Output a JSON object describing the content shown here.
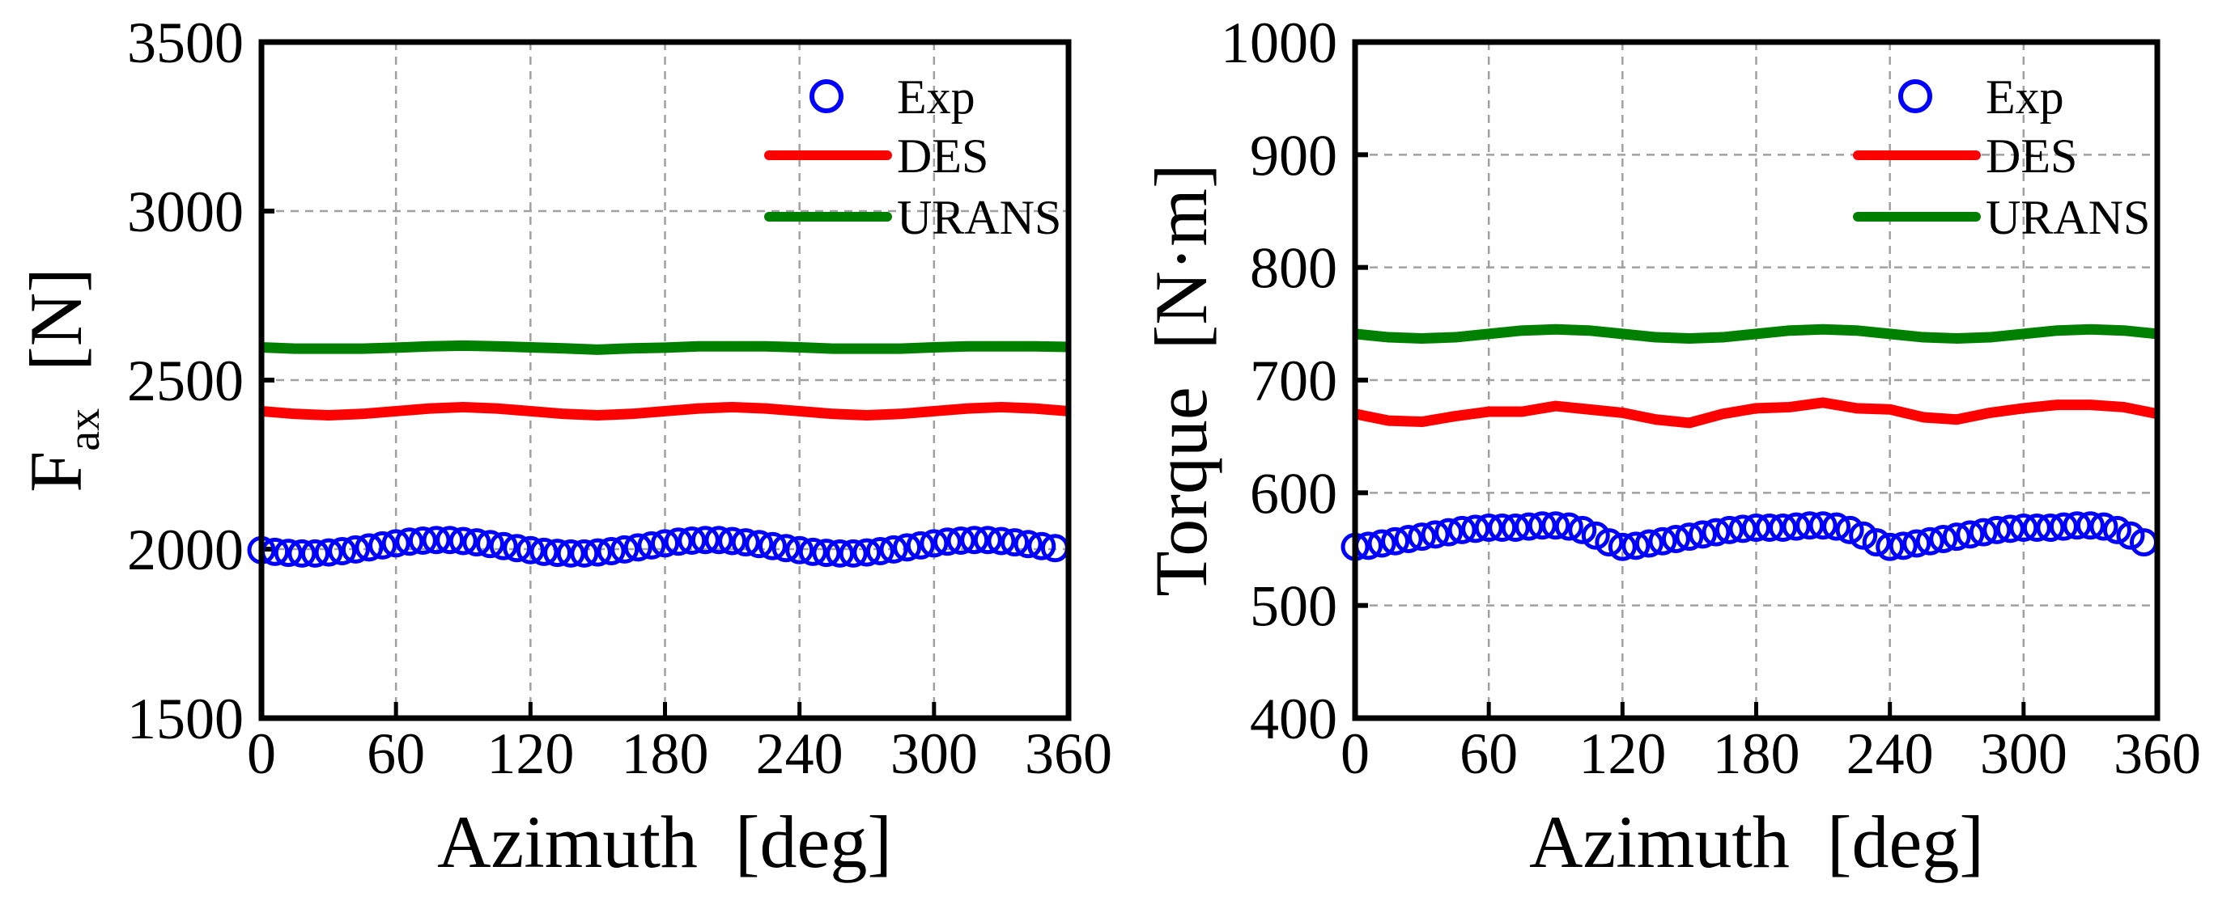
{
  "chart_data": [
    {
      "type": "line",
      "xlabel": "Azimuth  [deg]",
      "ylabel": "F",
      "ylabel_sub": "ax",
      "ylabel_unit": "[N]",
      "xlim": [
        0,
        360
      ],
      "ylim": [
        1500,
        3500
      ],
      "xticks": [
        0,
        60,
        120,
        180,
        240,
        300,
        360
      ],
      "yticks": [
        1500,
        2000,
        2500,
        3000,
        3500
      ],
      "grid": true,
      "legend_position": "top-right",
      "legend": [
        "Exp",
        "DES",
        "URANS"
      ],
      "series": [
        {
          "name": "Exp",
          "style": "markers",
          "color": "#0000ff",
          "x": [
            0,
            6,
            12,
            18,
            24,
            30,
            36,
            42,
            48,
            54,
            60,
            66,
            72,
            78,
            84,
            90,
            96,
            102,
            108,
            114,
            120,
            126,
            132,
            138,
            144,
            150,
            156,
            162,
            168,
            174,
            180,
            186,
            192,
            198,
            204,
            210,
            216,
            222,
            228,
            234,
            240,
            246,
            252,
            258,
            264,
            270,
            276,
            282,
            288,
            294,
            300,
            306,
            312,
            318,
            324,
            330,
            336,
            342,
            348,
            354
          ],
          "y": [
            1997,
            1992,
            1989,
            1987,
            1987,
            1990,
            1994,
            1999,
            2005,
            2011,
            2017,
            2022,
            2025,
            2027,
            2027,
            2024,
            2020,
            2015,
            2009,
            2003,
            1997,
            1992,
            1989,
            1987,
            1987,
            1990,
            1994,
            1999,
            2005,
            2011,
            2017,
            2022,
            2025,
            2027,
            2027,
            2024,
            2020,
            2015,
            2009,
            2003,
            1997,
            1992,
            1989,
            1987,
            1987,
            1990,
            1994,
            1999,
            2005,
            2011,
            2017,
            2022,
            2025,
            2027,
            2027,
            2024,
            2020,
            2015,
            2009,
            2003
          ]
        },
        {
          "name": "DES",
          "style": "line",
          "color": "#ff0000",
          "x": [
            0,
            15,
            30,
            45,
            60,
            75,
            90,
            105,
            120,
            135,
            150,
            165,
            180,
            195,
            210,
            225,
            240,
            255,
            270,
            285,
            300,
            315,
            330,
            345,
            360
          ],
          "y": [
            2408,
            2400,
            2396,
            2400,
            2408,
            2416,
            2420,
            2416,
            2408,
            2400,
            2396,
            2400,
            2408,
            2416,
            2420,
            2416,
            2408,
            2400,
            2396,
            2400,
            2408,
            2416,
            2420,
            2416,
            2408
          ]
        },
        {
          "name": "URANS",
          "style": "line",
          "color": "#008000",
          "x": [
            0,
            15,
            30,
            45,
            60,
            75,
            90,
            105,
            120,
            135,
            150,
            165,
            180,
            195,
            210,
            225,
            240,
            255,
            270,
            285,
            300,
            315,
            330,
            345,
            360
          ],
          "y": [
            2597,
            2593,
            2593,
            2593,
            2596,
            2600,
            2602,
            2600,
            2597,
            2594,
            2590,
            2594,
            2596,
            2600,
            2600,
            2600,
            2597,
            2593,
            2593,
            2593,
            2597,
            2600,
            2600,
            2600,
            2598
          ]
        }
      ]
    },
    {
      "type": "line",
      "xlabel": "Azimuth  [deg]",
      "ylabel": "Torque  [N·m]",
      "ylabel_sub": "",
      "ylabel_unit": "",
      "xlim": [
        0,
        360
      ],
      "ylim": [
        400,
        1000
      ],
      "xticks": [
        0,
        60,
        120,
        180,
        240,
        300,
        360
      ],
      "yticks": [
        400,
        500,
        600,
        700,
        800,
        900,
        1000
      ],
      "grid": true,
      "legend_position": "top-right",
      "legend": [
        "Exp",
        "DES",
        "URANS"
      ],
      "series": [
        {
          "name": "Exp",
          "style": "markers",
          "color": "#0000ff",
          "x": [
            0,
            6,
            12,
            18,
            24,
            30,
            36,
            42,
            48,
            54,
            60,
            66,
            72,
            78,
            84,
            90,
            96,
            102,
            108,
            114,
            120,
            126,
            132,
            138,
            144,
            150,
            156,
            162,
            168,
            174,
            180,
            186,
            192,
            198,
            204,
            210,
            216,
            222,
            228,
            234,
            240,
            246,
            252,
            258,
            264,
            270,
            276,
            282,
            288,
            294,
            300,
            306,
            312,
            318,
            324,
            330,
            336,
            342,
            348,
            354
          ],
          "y": [
            552,
            553,
            555,
            557,
            559,
            561,
            563,
            565,
            567,
            568,
            569,
            569,
            569,
            570,
            571,
            571,
            570,
            567,
            562,
            556,
            552,
            553,
            555,
            557,
            559,
            561,
            563,
            565,
            567,
            568,
            569,
            569,
            569,
            570,
            571,
            571,
            570,
            567,
            562,
            556,
            552,
            553,
            555,
            557,
            559,
            561,
            563,
            565,
            567,
            568,
            569,
            569,
            569,
            570,
            571,
            571,
            570,
            567,
            562,
            556
          ]
        },
        {
          "name": "DES",
          "style": "line",
          "color": "#ff0000",
          "x": [
            0,
            15,
            30,
            45,
            60,
            75,
            90,
            105,
            120,
            135,
            150,
            165,
            180,
            195,
            210,
            225,
            240,
            255,
            270,
            285,
            300,
            315,
            330,
            345,
            360
          ],
          "y": [
            670,
            664,
            663,
            668,
            672,
            672,
            677,
            674,
            671,
            665,
            662,
            670,
            675,
            676,
            680,
            675,
            674,
            667,
            665,
            671,
            675,
            678,
            678,
            676,
            670
          ]
        },
        {
          "name": "URANS",
          "style": "line",
          "color": "#008000",
          "x": [
            0,
            15,
            30,
            45,
            60,
            75,
            90,
            105,
            120,
            135,
            150,
            165,
            180,
            195,
            210,
            225,
            240,
            255,
            270,
            285,
            300,
            315,
            330,
            345,
            360
          ],
          "y": [
            741,
            738,
            737,
            738,
            741,
            744,
            745,
            744,
            741,
            738,
            737,
            738,
            741,
            744,
            745,
            744,
            741,
            738,
            737,
            738,
            741,
            744,
            745,
            744,
            741
          ]
        }
      ]
    }
  ]
}
